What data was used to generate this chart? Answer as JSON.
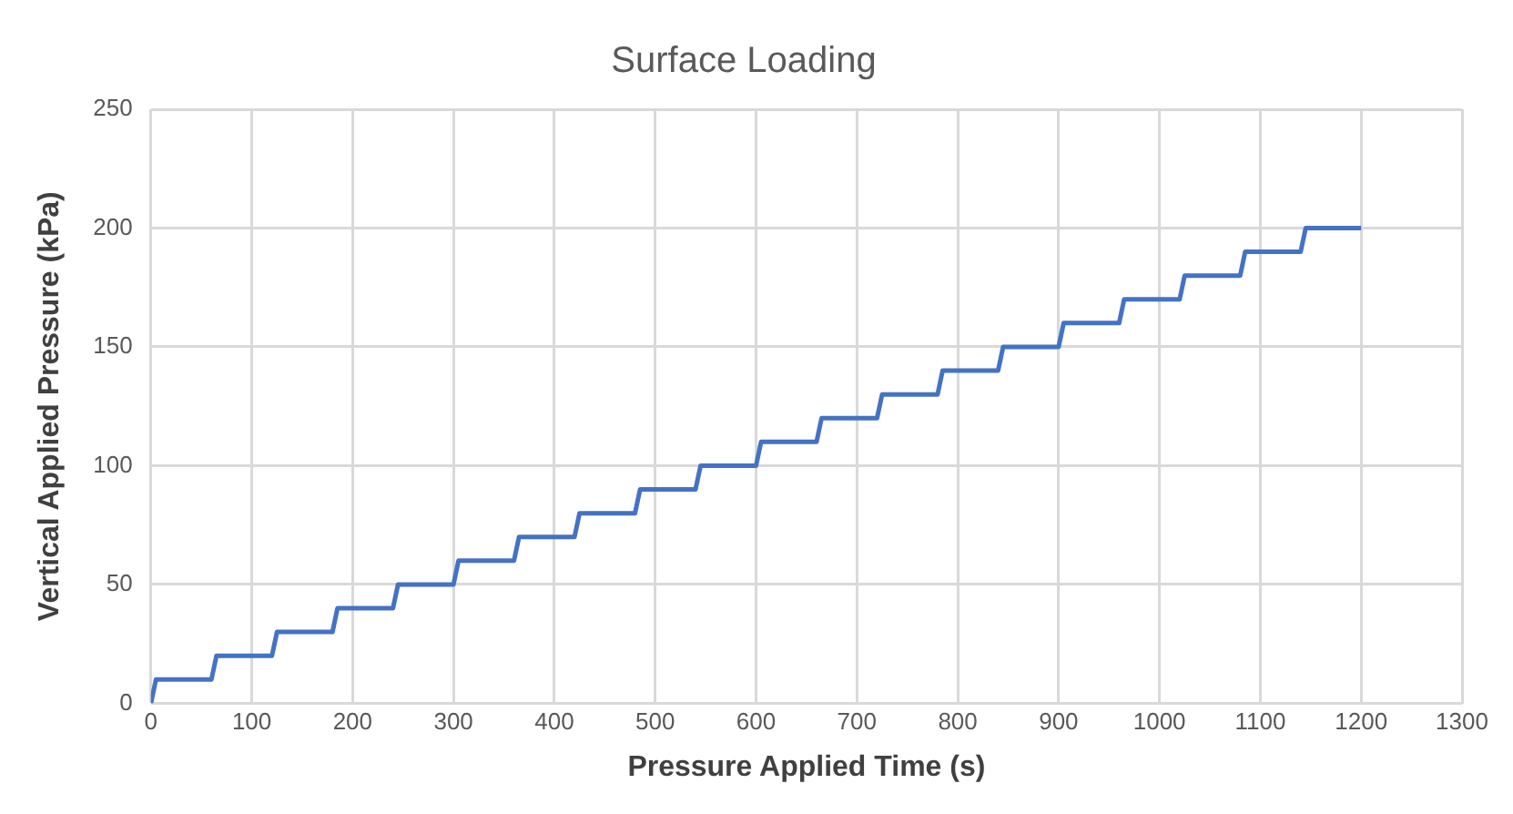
{
  "chart_data": {
    "type": "line",
    "title": "Surface Loading",
    "xlabel": "Pressure Applied Time (s)",
    "ylabel": "Vertical Applied Pressure (kPa)",
    "x": [
      0,
      5,
      60,
      65,
      120,
      125,
      180,
      185,
      240,
      245,
      300,
      305,
      360,
      365,
      420,
      425,
      480,
      485,
      540,
      545,
      600,
      605,
      660,
      665,
      720,
      725,
      780,
      785,
      840,
      845,
      900,
      905,
      960,
      965,
      1020,
      1025,
      1080,
      1085,
      1140,
      1145,
      1200
    ],
    "series": [
      {
        "color": "#4472c4",
        "values": [
          0,
          10,
          10,
          20,
          20,
          30,
          30,
          40,
          40,
          50,
          50,
          60,
          60,
          70,
          70,
          80,
          80,
          90,
          90,
          100,
          100,
          110,
          110,
          120,
          120,
          130,
          130,
          140,
          140,
          150,
          150,
          160,
          160,
          170,
          170,
          180,
          180,
          190,
          190,
          200,
          200
        ]
      }
    ],
    "xlim": [
      0,
      1300
    ],
    "xticks": [
      0,
      100,
      200,
      300,
      400,
      500,
      600,
      700,
      800,
      900,
      1000,
      1100,
      1200,
      1300
    ],
    "ylim": [
      0,
      250
    ],
    "yticks": [
      0,
      50,
      100,
      150,
      200,
      250
    ],
    "grid": true,
    "legend": false,
    "marker": "none",
    "line_style": "solid"
  }
}
